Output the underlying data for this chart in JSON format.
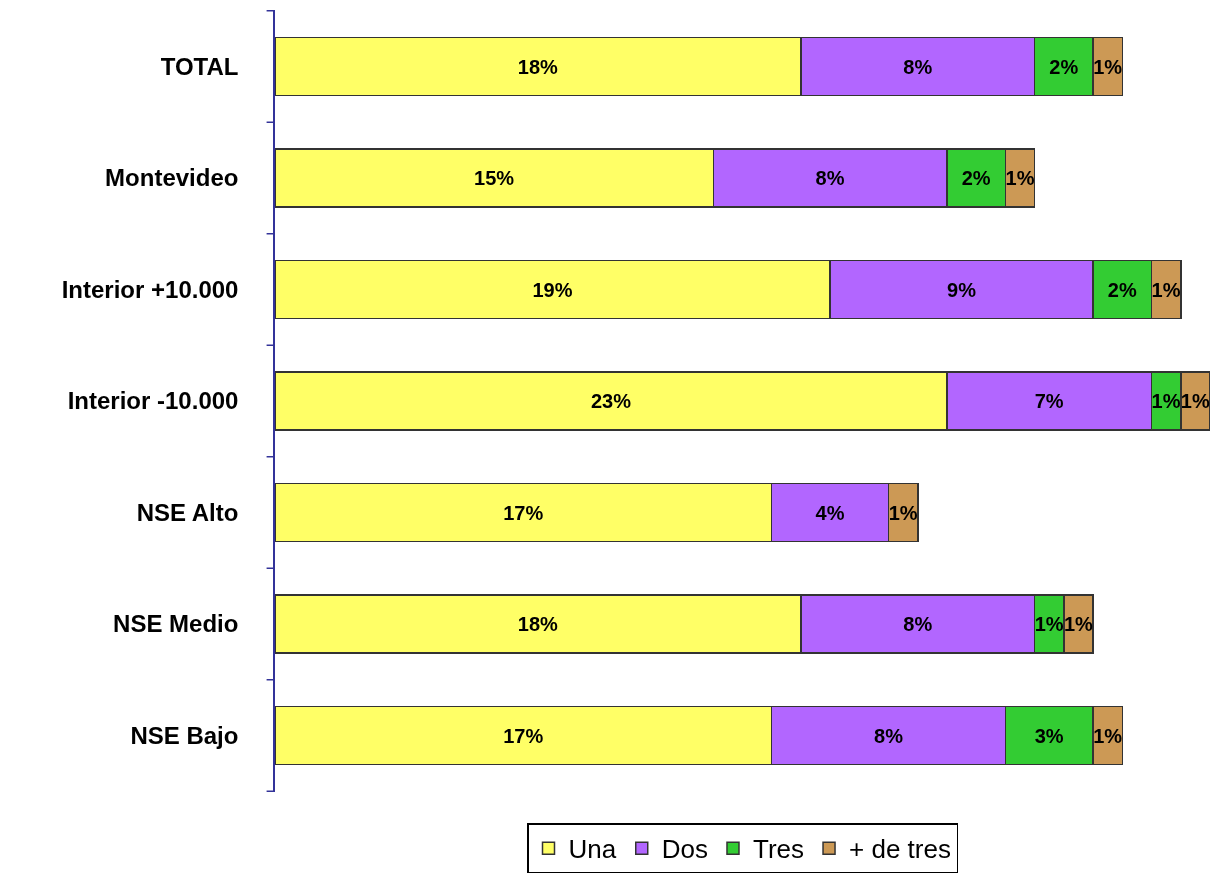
{
  "chart_data": {
    "type": "bar",
    "orientation": "horizontal",
    "stacked": true,
    "legend": "bottom",
    "categories": [
      "TOTAL",
      "Montevideo",
      "Interior +10.000",
      "Interior -10.000",
      "NSE Alto",
      "NSE Medio",
      "NSE Bajo"
    ],
    "series": [
      {
        "name": "Una",
        "color": "#ffff66",
        "values": [
          18,
          15,
          19,
          23,
          17,
          18,
          17
        ],
        "value_labels": [
          "18%",
          "15%",
          "19%",
          "23%",
          "17%",
          "18%",
          "17%"
        ]
      },
      {
        "name": "Dos",
        "color": "#b266ff",
        "values": [
          8,
          8,
          9,
          7,
          4,
          8,
          8
        ],
        "value_labels": [
          "8%",
          "8%",
          "9%",
          "7%",
          "4%",
          "8%",
          "8%"
        ]
      },
      {
        "name": "Tres",
        "color": "#33cc33",
        "values": [
          2,
          2,
          2,
          1,
          null,
          1,
          3
        ],
        "value_labels": [
          "2%",
          "2%",
          "2%",
          "1%",
          null,
          "1%",
          "3%"
        ]
      },
      {
        "name": "+ de tres",
        "color": "#cc9955",
        "values": [
          1,
          1,
          1,
          1,
          1,
          1,
          1
        ],
        "value_labels": [
          "1%",
          "1%",
          "1%",
          "1%",
          "1%",
          "1%",
          "1%"
        ]
      }
    ]
  }
}
